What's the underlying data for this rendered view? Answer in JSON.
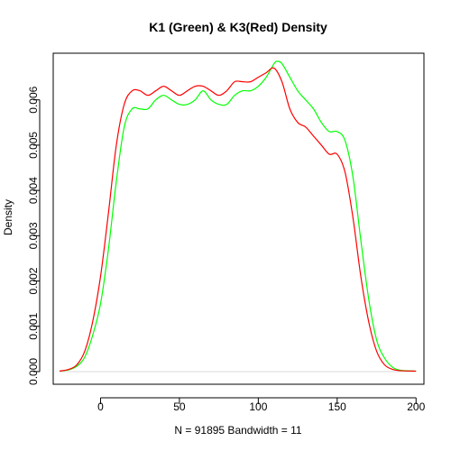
{
  "chart_data": {
    "type": "line",
    "title": "K1 (Green) & K3(Red) Density",
    "xlabel": "N = 91895   Bandwidth = 11",
    "ylabel": "Density",
    "xlim": [
      -30,
      205
    ],
    "ylim": [
      -0.00028,
      0.00703
    ],
    "x_ticks": [
      0,
      50,
      100,
      150,
      200
    ],
    "y_ticks": [
      0.0,
      0.001,
      0.002,
      0.003,
      0.004,
      0.005,
      0.006
    ],
    "y_tick_labels": [
      "0.000",
      "0.001",
      "0.002",
      "0.003",
      "0.004",
      "0.005",
      "0.006"
    ],
    "zero_line": true,
    "series": [
      {
        "color": "#00ff00",
        "x": [
          -26,
          -20,
          -15,
          -10,
          -5,
          0,
          5,
          10,
          15,
          20,
          25,
          30,
          35,
          40,
          45,
          50,
          55,
          60,
          65,
          70,
          75,
          80,
          85,
          90,
          95,
          100,
          105,
          110,
          112,
          115,
          120,
          125,
          130,
          135,
          140,
          145,
          150,
          155,
          160,
          165,
          170,
          175,
          180,
          185,
          190,
          200
        ],
        "y": [
          1e-05,
          4e-05,
          0.00012,
          0.00032,
          0.0008,
          0.0015,
          0.0027,
          0.0042,
          0.0054,
          0.0058,
          0.0058,
          0.0058,
          0.006,
          0.0061,
          0.006,
          0.0059,
          0.0059,
          0.006,
          0.0062,
          0.006,
          0.0059,
          0.0059,
          0.0061,
          0.0062,
          0.0062,
          0.0063,
          0.0065,
          0.0068,
          0.00685,
          0.0068,
          0.0065,
          0.0062,
          0.006,
          0.0058,
          0.0055,
          0.0053,
          0.0053,
          0.0051,
          0.0043,
          0.0029,
          0.0016,
          0.0007,
          0.0003,
          0.0001,
          3e-05,
          1e-05
        ]
      },
      {
        "color": "#ff0000",
        "x": [
          -26,
          -20,
          -15,
          -10,
          -5,
          0,
          5,
          10,
          15,
          20,
          25,
          30,
          35,
          40,
          45,
          50,
          55,
          60,
          65,
          70,
          75,
          80,
          85,
          90,
          95,
          100,
          105,
          110,
          115,
          120,
          125,
          130,
          135,
          140,
          145,
          150,
          155,
          160,
          165,
          170,
          175,
          180,
          185,
          190,
          200
        ],
        "y": [
          1e-05,
          5e-05,
          0.00015,
          0.00045,
          0.0011,
          0.0021,
          0.0035,
          0.005,
          0.0059,
          0.0062,
          0.0062,
          0.0061,
          0.0062,
          0.0063,
          0.0062,
          0.0061,
          0.0062,
          0.0063,
          0.0063,
          0.0062,
          0.0061,
          0.0062,
          0.0064,
          0.0064,
          0.0064,
          0.0065,
          0.0066,
          0.0067,
          0.0064,
          0.0058,
          0.0055,
          0.0054,
          0.0052,
          0.005,
          0.0048,
          0.0048,
          0.0044,
          0.0034,
          0.0021,
          0.0011,
          0.00045,
          0.00015,
          5e-05,
          2e-05,
          1e-05
        ]
      }
    ]
  }
}
